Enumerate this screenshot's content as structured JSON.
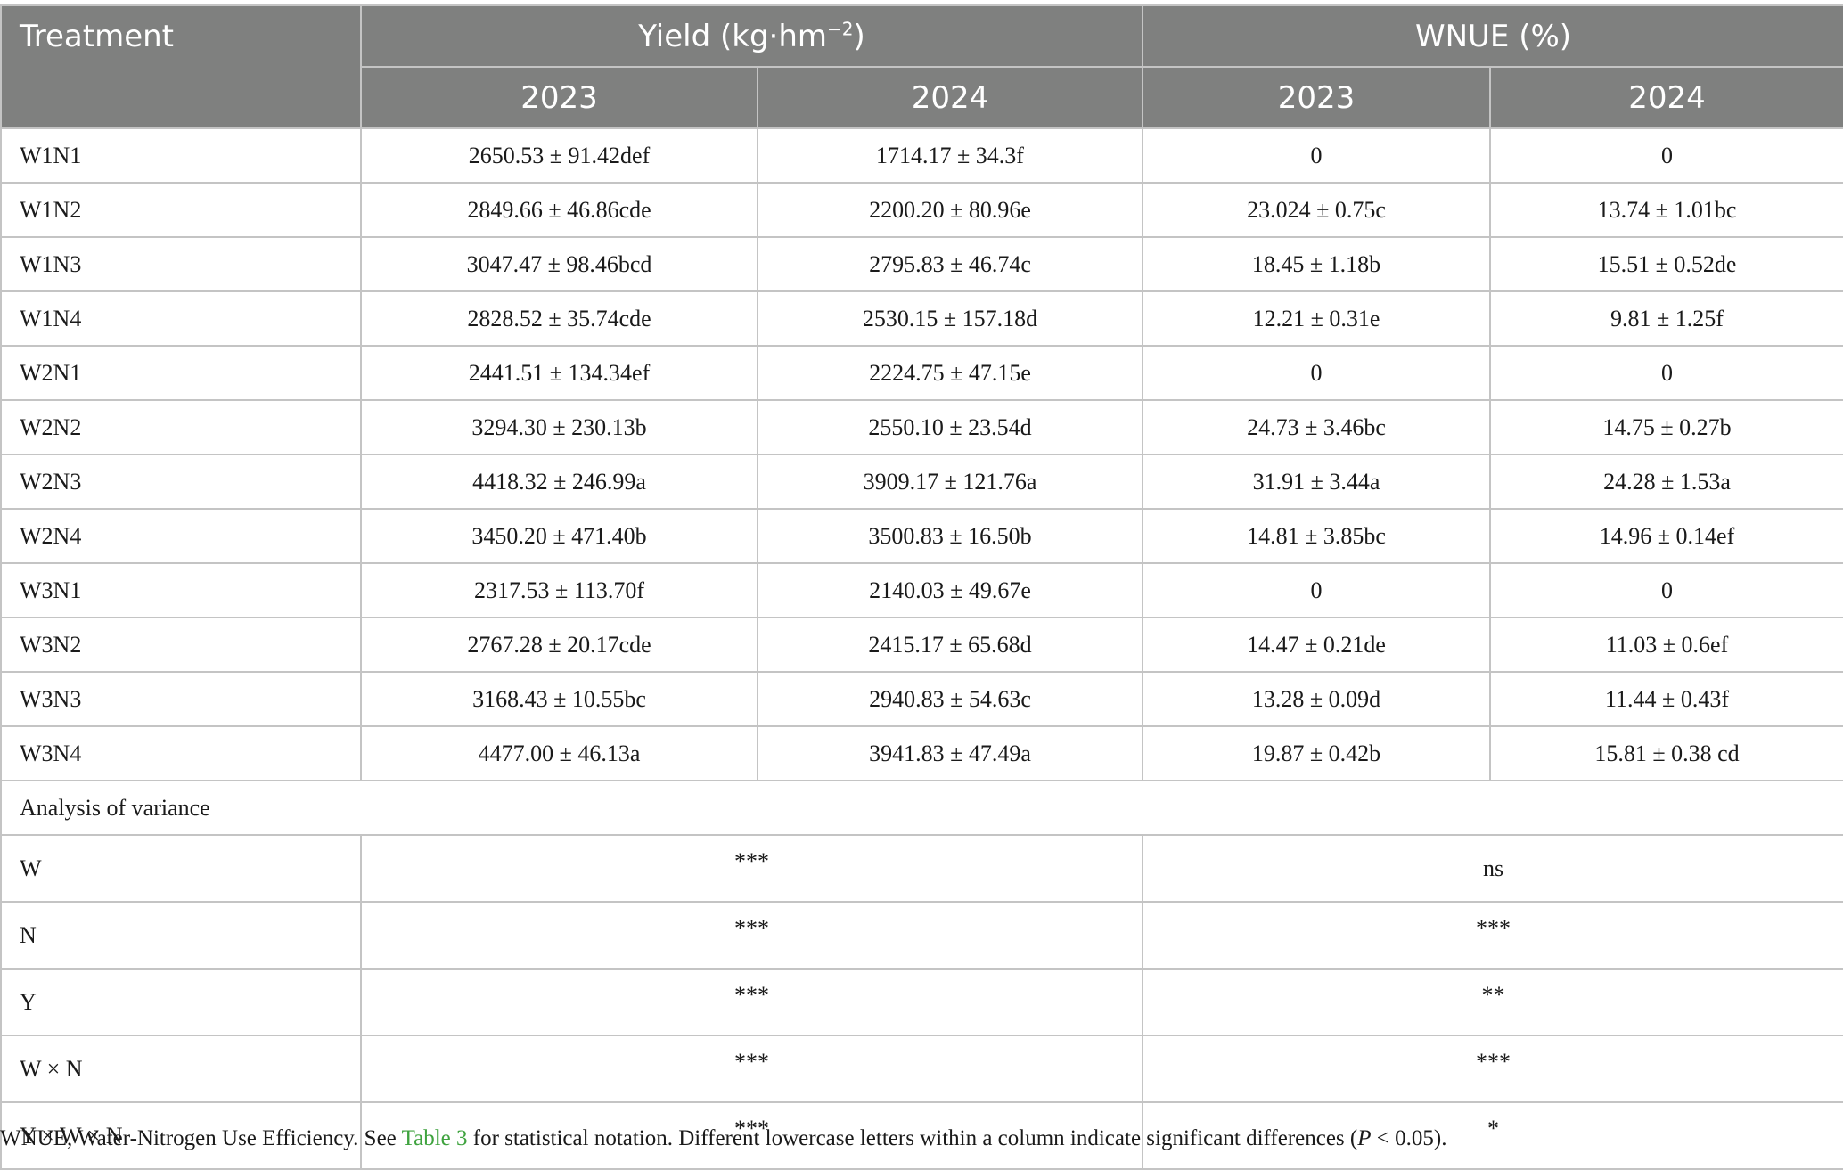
{
  "table": {
    "header": {
      "treatment": "Treatment",
      "yield_pre": "Yield (kg·hm",
      "yield_sup": "−2",
      "yield_post": ")",
      "wnue": "WNUE (%)",
      "years": [
        "2023",
        "2024",
        "2023",
        "2024"
      ]
    },
    "rows": [
      {
        "t": "W1N1",
        "y2023": "2650.53 ± 91.42def",
        "y2024": "1714.17 ± 34.3f",
        "w2023": "0",
        "w2024": "0"
      },
      {
        "t": "W1N2",
        "y2023": "2849.66 ± 46.86cde",
        "y2024": "2200.20 ± 80.96e",
        "w2023": "23.024 ± 0.75c",
        "w2024": "13.74 ± 1.01bc"
      },
      {
        "t": "W1N3",
        "y2023": "3047.47 ± 98.46bcd",
        "y2024": "2795.83 ± 46.74c",
        "w2023": "18.45 ± 1.18b",
        "w2024": "15.51 ± 0.52de"
      },
      {
        "t": "W1N4",
        "y2023": "2828.52 ± 35.74cde",
        "y2024": "2530.15 ± 157.18d",
        "w2023": "12.21 ± 0.31e",
        "w2024": "9.81 ± 1.25f"
      },
      {
        "t": "W2N1",
        "y2023": "2441.51 ± 134.34ef",
        "y2024": "2224.75 ± 47.15e",
        "w2023": "0",
        "w2024": "0"
      },
      {
        "t": "W2N2",
        "y2023": "3294.30 ± 230.13b",
        "y2024": "2550.10 ± 23.54d",
        "w2023": "24.73 ± 3.46bc",
        "w2024": "14.75 ± 0.27b"
      },
      {
        "t": "W2N3",
        "y2023": "4418.32 ± 246.99a",
        "y2024": "3909.17 ± 121.76a",
        "w2023": "31.91 ± 3.44a",
        "w2024": "24.28 ± 1.53a"
      },
      {
        "t": "W2N4",
        "y2023": "3450.20 ± 471.40b",
        "y2024": "3500.83 ± 16.50b",
        "w2023": "14.81 ± 3.85bc",
        "w2024": "14.96 ± 0.14ef"
      },
      {
        "t": "W3N1",
        "y2023": "2317.53 ± 113.70f",
        "y2024": "2140.03 ± 49.67e",
        "w2023": "0",
        "w2024": "0"
      },
      {
        "t": "W3N2",
        "y2023": "2767.28 ± 20.17cde",
        "y2024": "2415.17 ± 65.68d",
        "w2023": "14.47 ± 0.21de",
        "w2024": "11.03 ± 0.6ef"
      },
      {
        "t": "W3N3",
        "y2023": "3168.43 ± 10.55bc",
        "y2024": "2940.83 ± 54.63c",
        "w2023": "13.28 ± 0.09d",
        "w2024": "11.44 ± 0.43f"
      },
      {
        "t": "W3N4",
        "y2023": "4477.00 ± 46.13a",
        "y2024": "3941.83 ± 47.49a",
        "w2023": "19.87 ± 0.42b",
        "w2024": "15.81 ± 0.38 cd"
      }
    ],
    "anova_title": "Analysis of variance",
    "anova": [
      {
        "factor": "W",
        "yield": "***",
        "wnue": "ns"
      },
      {
        "factor": "N",
        "yield": "***",
        "wnue": "***"
      },
      {
        "factor": "Y",
        "yield": "***",
        "wnue": "**"
      },
      {
        "factor": "W × N",
        "yield": "***",
        "wnue": "***"
      },
      {
        "factor": "Y × W × N",
        "yield": "***",
        "wnue": "*"
      }
    ]
  },
  "footnote": {
    "pre": "WNUE, Water-Nitrogen Use Efficiency. See ",
    "link": "Table 3",
    "mid": " for statistical notation. Different lowercase letters within a column indicate significant differences (",
    "p": "P",
    "post": " < 0.05).",
    "link_color": "#3fa33f"
  },
  "colors": {
    "header_bg": "#7f807f",
    "header_text": "#ffffff",
    "border": "#c4c4c4"
  }
}
